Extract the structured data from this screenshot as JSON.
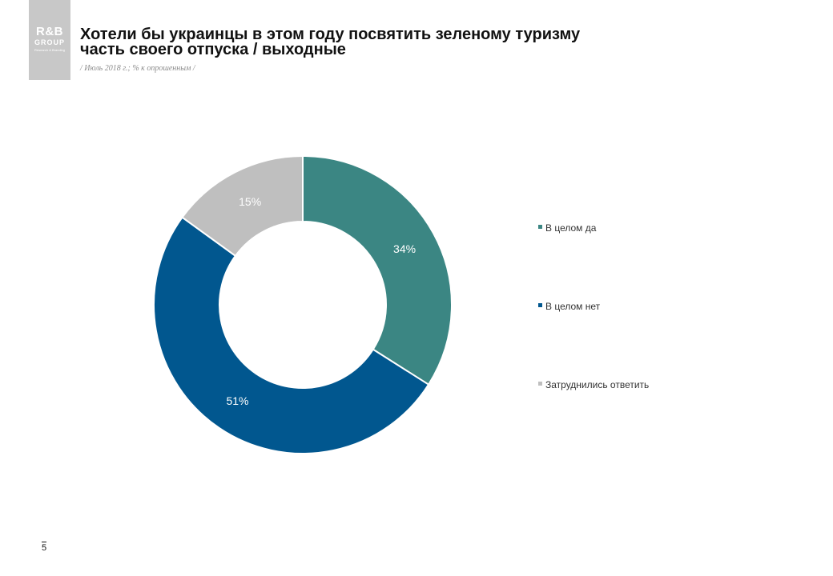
{
  "logo": {
    "line1": "R&B",
    "line2": "GROUP",
    "line3": "Research & Branding"
  },
  "header": {
    "title_line1": "Хотели бы украинцы в этом году посвятить зеленому туризму",
    "title_line2": "часть своего отпуска / выходные",
    "subtitle": "/ Июль 2018 г.; % к опрошенным /"
  },
  "page_number": "5",
  "chart_data": {
    "type": "pie",
    "donut": true,
    "categories": [
      "В целом да",
      "В целом нет",
      "Затруднились ответить"
    ],
    "values": [
      34,
      51,
      15
    ],
    "labels": [
      "34%",
      "51%",
      "15%"
    ],
    "colors": [
      "#3b8683",
      "#01578f",
      "#bfbfbf"
    ],
    "label_color": "#ffffff",
    "legend_placement": "right",
    "start": "top",
    "direction": "clockwise"
  }
}
